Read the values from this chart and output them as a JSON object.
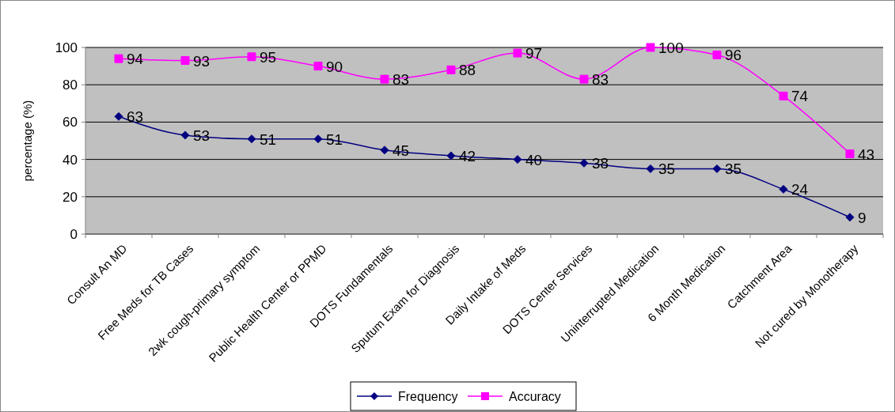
{
  "chart_data": {
    "type": "line",
    "ylabel": "percentage (%)",
    "categories": [
      "Consult An MD",
      "Free Meds for TB Cases",
      "2wk cough-primary symptom",
      "Public Health Center or PPMD",
      "DOTS Fundamentals",
      "Sputum Exam for Diagnosis",
      "Daily Intake of Meds",
      "DOTS Center Services",
      "Uninterrupted Medication",
      "6 Month Medication",
      "Catchment Area",
      "Not cured by Monotherapy"
    ],
    "series": [
      {
        "name": "Frequency",
        "color": "#000080",
        "marker": "diamond",
        "values": [
          63,
          53,
          51,
          51,
          45,
          42,
          40,
          38,
          35,
          35,
          24,
          9
        ]
      },
      {
        "name": "Accuracy",
        "color": "#ff00ff",
        "marker": "square",
        "values": [
          94,
          93,
          95,
          90,
          83,
          88,
          97,
          83,
          100,
          96,
          74,
          43
        ]
      }
    ],
    "ylim": [
      0,
      100
    ],
    "yticks": [
      0,
      20,
      40,
      60,
      80,
      100
    ],
    "grid": "y",
    "legend": "bottom",
    "data_labels": true,
    "line_style": "solid"
  }
}
